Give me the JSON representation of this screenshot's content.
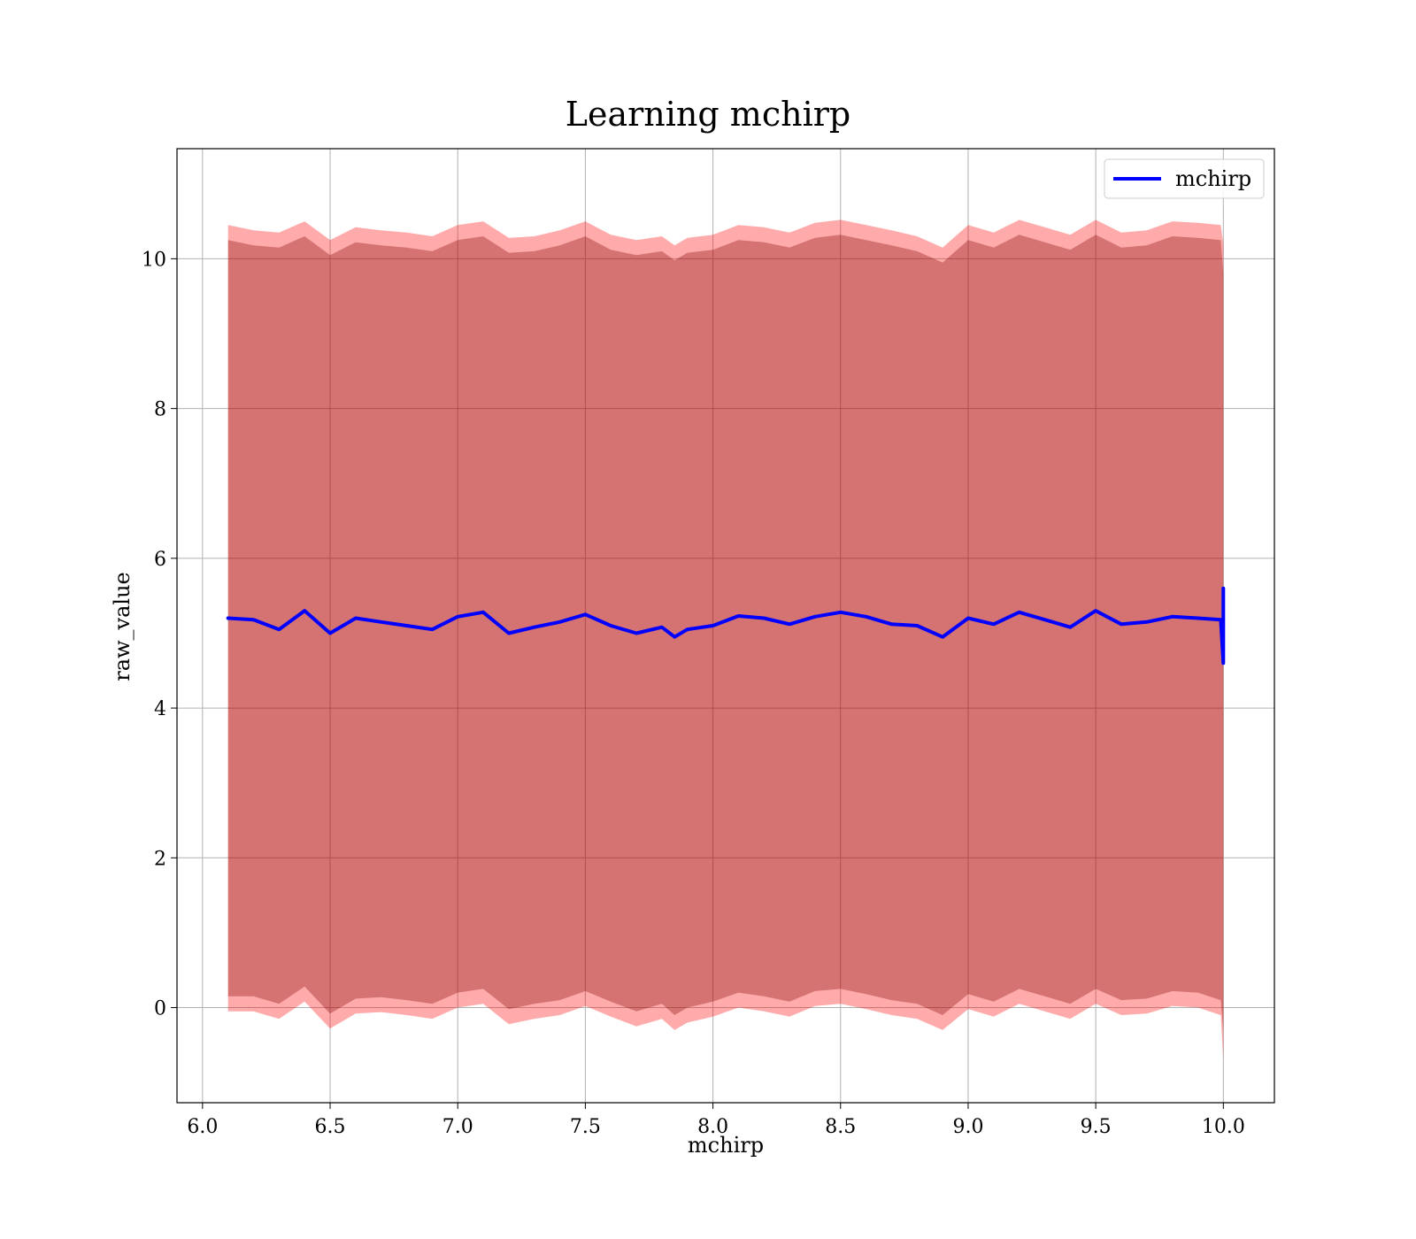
{
  "chart_data": {
    "type": "line",
    "title": "Learning mchirp",
    "xlabel": "mchirp",
    "ylabel": "raw_value",
    "xlim": [
      5.9,
      10.2
    ],
    "ylim": [
      -1.27,
      11.47
    ],
    "x_ticks": [
      6.0,
      6.5,
      7.0,
      7.5,
      8.0,
      8.5,
      9.0,
      9.5,
      10.0
    ],
    "x_tick_labels": [
      "6.0",
      "6.5",
      "7.0",
      "7.5",
      "8.0",
      "8.5",
      "9.0",
      "9.5",
      "10.0"
    ],
    "y_ticks": [
      0,
      2,
      4,
      6,
      8,
      10
    ],
    "y_tick_labels": [
      "0",
      "2",
      "4",
      "6",
      "8",
      "10"
    ],
    "grid": true,
    "legend_position": "top-right",
    "series": [
      {
        "name": "mchirp",
        "color": "#0000ff",
        "x": [
          6.1,
          6.2,
          6.3,
          6.4,
          6.5,
          6.6,
          6.7,
          6.8,
          6.9,
          7.0,
          7.1,
          7.2,
          7.3,
          7.4,
          7.5,
          7.6,
          7.7,
          7.8,
          7.85,
          7.9,
          8.0,
          8.1,
          8.2,
          8.3,
          8.4,
          8.5,
          8.6,
          8.7,
          8.8,
          8.9,
          9.0,
          9.1,
          9.2,
          9.3,
          9.4,
          9.5,
          9.6,
          9.7,
          9.8,
          9.9,
          9.99,
          10.0,
          10.0
        ],
        "values": [
          5.2,
          5.18,
          5.05,
          5.3,
          5.0,
          5.2,
          5.15,
          5.1,
          5.05,
          5.22,
          5.28,
          5.0,
          5.08,
          5.15,
          5.25,
          5.1,
          5.0,
          5.08,
          4.95,
          5.05,
          5.1,
          5.23,
          5.2,
          5.12,
          5.22,
          5.28,
          5.22,
          5.12,
          5.1,
          4.95,
          5.2,
          5.12,
          5.28,
          5.18,
          5.08,
          5.3,
          5.12,
          5.15,
          5.22,
          5.2,
          5.18,
          4.6,
          5.6
        ]
      }
    ],
    "bands": [
      {
        "color": "#ff0000",
        "upper": [
          10.45,
          10.38,
          10.35,
          10.5,
          10.25,
          10.42,
          10.38,
          10.35,
          10.3,
          10.45,
          10.5,
          10.28,
          10.3,
          10.38,
          10.5,
          10.32,
          10.25,
          10.3,
          10.18,
          10.28,
          10.32,
          10.45,
          10.42,
          10.35,
          10.48,
          10.52,
          10.45,
          10.38,
          10.3,
          10.15,
          10.45,
          10.35,
          10.52,
          10.42,
          10.32,
          10.52,
          10.35,
          10.38,
          10.5,
          10.48,
          10.45,
          10.2,
          10.2
        ],
        "lower": [
          -0.05,
          -0.05,
          -0.15,
          0.08,
          -0.28,
          -0.08,
          -0.06,
          -0.1,
          -0.15,
          0.0,
          0.05,
          -0.22,
          -0.15,
          -0.1,
          0.02,
          -0.12,
          -0.25,
          -0.15,
          -0.3,
          -0.2,
          -0.12,
          0.0,
          -0.05,
          -0.12,
          0.02,
          0.05,
          -0.02,
          -0.1,
          -0.15,
          -0.3,
          -0.02,
          -0.12,
          0.05,
          -0.05,
          -0.15,
          0.05,
          -0.1,
          -0.08,
          0.02,
          0.0,
          -0.1,
          -0.7,
          -0.7
        ]
      },
      {
        "color": "#800000",
        "upper": [
          10.25,
          10.18,
          10.15,
          10.3,
          10.05,
          10.22,
          10.18,
          10.15,
          10.1,
          10.25,
          10.3,
          10.08,
          10.1,
          10.18,
          10.3,
          10.12,
          10.05,
          10.1,
          9.98,
          10.08,
          10.12,
          10.25,
          10.22,
          10.15,
          10.28,
          10.32,
          10.25,
          10.18,
          10.1,
          9.95,
          10.25,
          10.15,
          10.32,
          10.22,
          10.12,
          10.32,
          10.15,
          10.18,
          10.3,
          10.28,
          10.25,
          9.8,
          9.8
        ],
        "lower": [
          0.15,
          0.15,
          0.05,
          0.28,
          -0.08,
          0.12,
          0.14,
          0.1,
          0.05,
          0.2,
          0.25,
          -0.02,
          0.05,
          0.1,
          0.22,
          0.08,
          -0.05,
          0.05,
          -0.1,
          0.0,
          0.08,
          0.2,
          0.15,
          0.08,
          0.22,
          0.25,
          0.18,
          0.1,
          0.05,
          -0.1,
          0.18,
          0.08,
          0.25,
          0.15,
          0.05,
          0.25,
          0.1,
          0.12,
          0.22,
          0.2,
          0.1,
          -0.3,
          -0.3
        ]
      }
    ]
  }
}
